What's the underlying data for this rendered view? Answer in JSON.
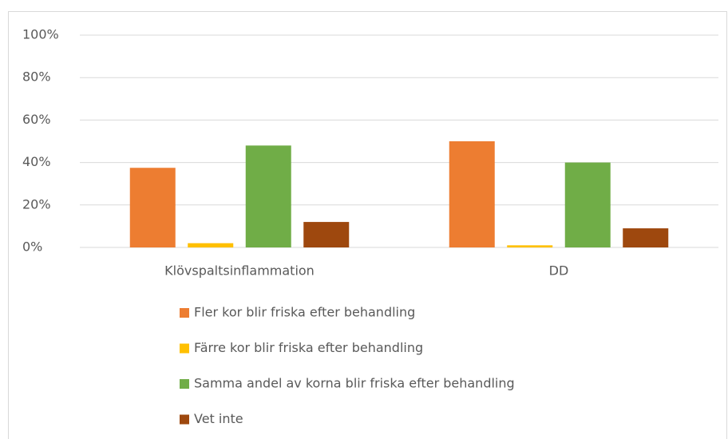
{
  "chart_data": {
    "type": "bar",
    "categories": [
      "Klövspaltsinflammation",
      "DD"
    ],
    "series": [
      {
        "name": "Fler kor blir friska efter behandling",
        "color": "#ED7D31",
        "values": [
          37.5,
          50
        ]
      },
      {
        "name": "Färre kor blir friska efter behandling",
        "color": "#FFC000",
        "values": [
          2,
          1
        ]
      },
      {
        "name": "Samma andel av korna blir friska efter behandling",
        "color": "#70AD47",
        "values": [
          48,
          40
        ]
      },
      {
        "name": "Vet inte",
        "color": "#9E480E",
        "values": [
          12,
          9
        ]
      }
    ],
    "ylim": [
      0,
      100
    ],
    "yticks": [
      {
        "value": 0,
        "label": "0%"
      },
      {
        "value": 20,
        "label": "20%"
      },
      {
        "value": 40,
        "label": "40%"
      },
      {
        "value": 60,
        "label": "60%"
      },
      {
        "value": 80,
        "label": "80%"
      },
      {
        "value": 100,
        "label": "100%"
      }
    ],
    "grid": true,
    "legend": "bottom"
  }
}
